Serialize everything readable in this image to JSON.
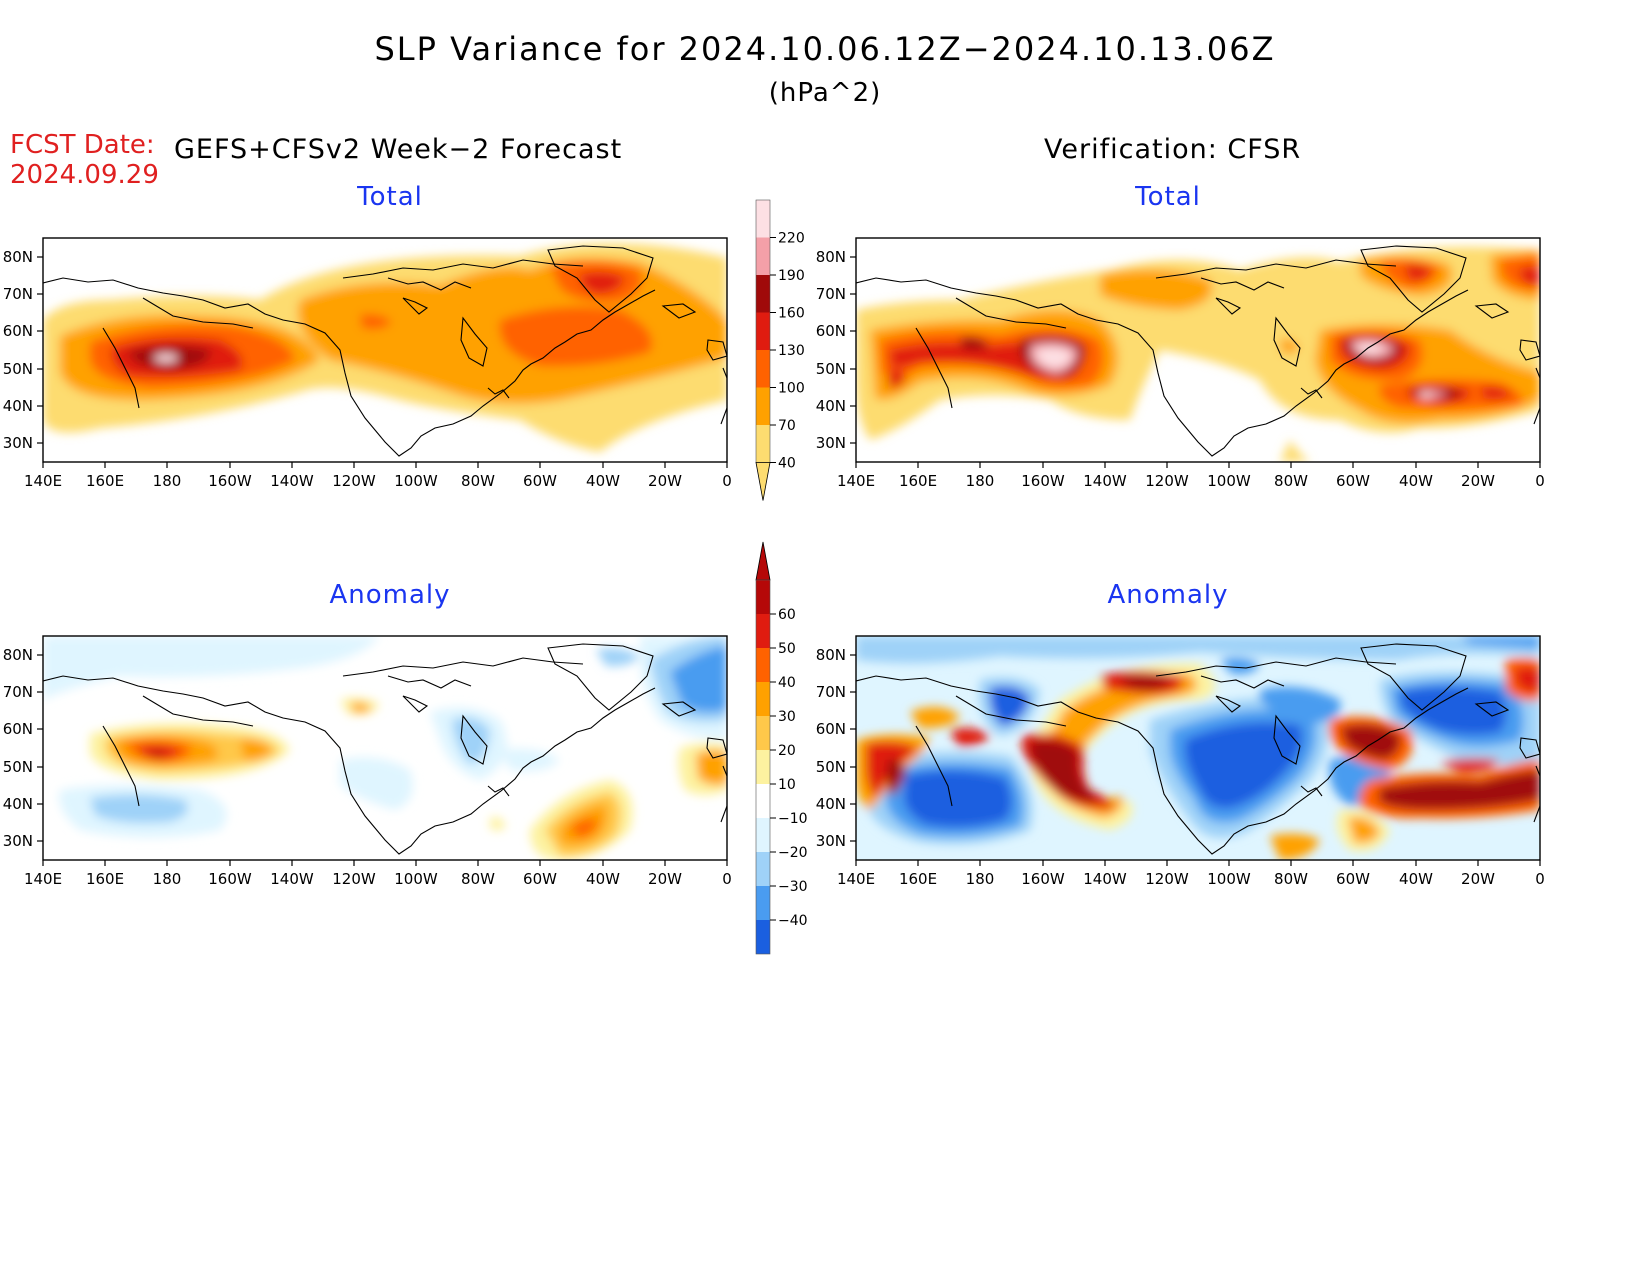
{
  "header": {
    "title": "SLP Variance for 2024.10.06.12Z−2024.10.13.06Z",
    "units": "(hPa^2)",
    "fcst_label": "FCST Date:",
    "fcst_date": "2024.09.29",
    "left_heading": "GEFS+CFSv2 Week−2 Forecast",
    "right_heading": "Verification: CFSR"
  },
  "panels": [
    {
      "id": "forecast-total",
      "title": "Total"
    },
    {
      "id": "verification-total",
      "title": "Total"
    },
    {
      "id": "forecast-anomaly",
      "title": "Anomaly"
    },
    {
      "id": "verification-anomaly",
      "title": "Anomaly"
    }
  ],
  "axes": {
    "lat_labels": [
      "80N",
      "70N",
      "60N",
      "50N",
      "40N",
      "30N"
    ],
    "lon_labels": [
      "140E",
      "160E",
      "180",
      "160W",
      "140W",
      "120W",
      "100W",
      "80W",
      "60W",
      "40W",
      "20W",
      "0"
    ]
  },
  "colorbars": {
    "total": {
      "labels": [
        "220",
        "190",
        "160",
        "130",
        "100",
        "70",
        "40"
      ],
      "colors": [
        "#fde0e4",
        "#f4a0a8",
        "#a00a0a",
        "#e01c10",
        "#ff6200",
        "#ffa100",
        "#fddc70"
      ]
    },
    "anomaly": {
      "labels": [
        "60",
        "50",
        "40",
        "30",
        "20",
        "10",
        "−10",
        "−20",
        "−30",
        "−40"
      ],
      "colors": [
        "#b50808",
        "#e01c10",
        "#ff6200",
        "#ffa100",
        "#ffc84a",
        "#fdf2a0",
        "#ffffff",
        "#dff5ff",
        "#9fd2f8",
        "#4a9cf0",
        "#1a5fe0"
      ]
    }
  }
}
